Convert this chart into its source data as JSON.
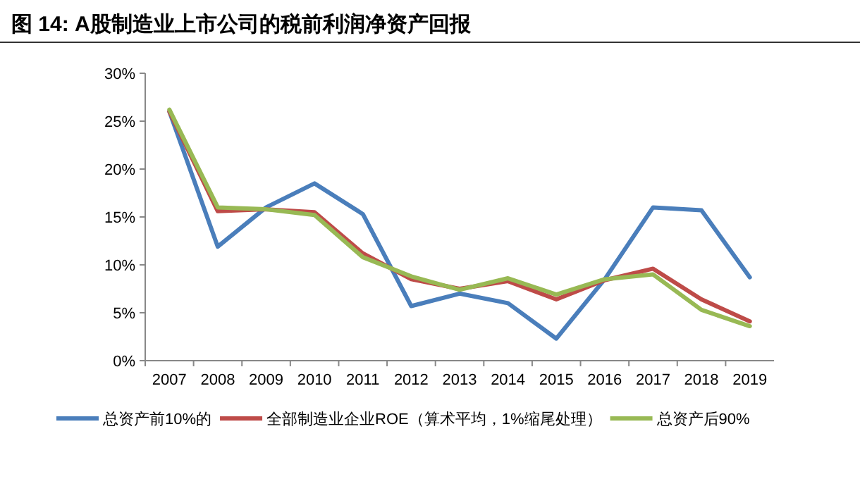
{
  "chart_data": {
    "type": "line",
    "title": "图 14:  A股制造业上市公司的税前利润净资产回报",
    "categories": [
      "2007",
      "2008",
      "2009",
      "2010",
      "2011",
      "2012",
      "2013",
      "2014",
      "2015",
      "2016",
      "2017",
      "2018",
      "2019"
    ],
    "ylim": [
      0,
      30
    ],
    "yticks": [
      {
        "value": 0,
        "label": "0%"
      },
      {
        "value": 5,
        "label": "5%"
      },
      {
        "value": 10,
        "label": "10%"
      },
      {
        "value": 15,
        "label": "15%"
      },
      {
        "value": 20,
        "label": "20%"
      },
      {
        "value": 25,
        "label": "25%"
      },
      {
        "value": 30,
        "label": "30%"
      }
    ],
    "grid": false,
    "legend": "bottom",
    "marker": "none",
    "line_style": "solid",
    "series": [
      {
        "name": "总资产前10%的",
        "color": "#4a7ebb",
        "values": [
          26,
          11.9,
          16,
          18.5,
          15.3,
          5.7,
          7,
          6,
          2.3,
          8.5,
          16,
          15.7,
          8.7
        ]
      },
      {
        "name": "全部制造业企业ROE（算术平均，1%缩尾处理）",
        "color": "#be4b48",
        "values": [
          26,
          15.6,
          15.8,
          15.5,
          11.2,
          8.5,
          7.5,
          8.3,
          6.4,
          8.4,
          9.6,
          6.4,
          4.1
        ]
      },
      {
        "name": "总资产后90%",
        "color": "#98b954",
        "values": [
          26.2,
          16,
          15.8,
          15.2,
          10.8,
          8.8,
          7.4,
          8.6,
          6.9,
          8.5,
          9,
          5.3,
          3.6
        ]
      }
    ]
  }
}
